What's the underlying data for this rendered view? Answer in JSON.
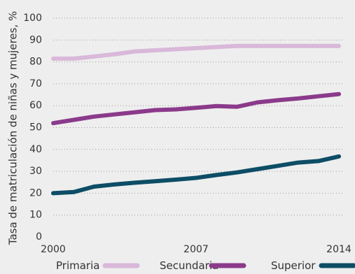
{
  "chart_data": {
    "type": "line",
    "ylabel": "Tasa de matriculación de niñas y mujeres, %",
    "ylim": [
      0,
      100
    ],
    "yticks": [
      0,
      10,
      20,
      30,
      40,
      50,
      60,
      70,
      80,
      90,
      100
    ],
    "x": [
      2000,
      2001,
      2002,
      2003,
      2004,
      2005,
      2006,
      2007,
      2008,
      2009,
      2010,
      2011,
      2012,
      2013,
      2014
    ],
    "xticks": [
      2000,
      2007,
      2014
    ],
    "grid": "horizontal dotted",
    "legend_position": "bottom",
    "series": [
      {
        "name": "Primaria",
        "color": "#d9b8d9",
        "values": [
          81.5,
          81.5,
          82.5,
          83.5,
          84.8,
          85.3,
          85.8,
          86.3,
          86.8,
          87.3,
          87.3,
          87.3,
          87.3,
          87.3,
          87.3
        ]
      },
      {
        "name": "Secundaria",
        "color": "#8b3a8b",
        "values": [
          52.0,
          53.5,
          55.0,
          56.0,
          57.0,
          58.0,
          58.3,
          59.0,
          59.8,
          59.5,
          61.5,
          62.5,
          63.3,
          64.3,
          65.3
        ]
      },
      {
        "name": "Superior",
        "color": "#0d4d66",
        "values": [
          20.0,
          20.5,
          23.0,
          24.0,
          24.8,
          25.5,
          26.2,
          27.0,
          28.3,
          29.5,
          31.0,
          32.5,
          34.0,
          34.7,
          36.8
        ]
      }
    ]
  }
}
